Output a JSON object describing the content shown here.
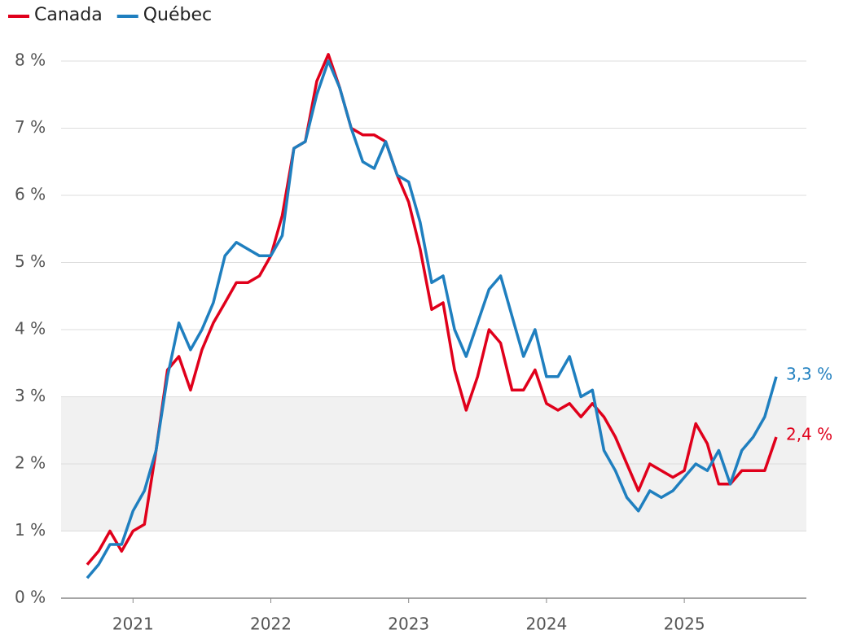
{
  "chart_data": {
    "type": "line",
    "x": [
      2020.667,
      2020.75,
      2020.833,
      2020.917,
      2021.0,
      2021.083,
      2021.167,
      2021.25,
      2021.333,
      2021.417,
      2021.5,
      2021.583,
      2021.667,
      2021.75,
      2021.833,
      2021.917,
      2022.0,
      2022.083,
      2022.167,
      2022.25,
      2022.333,
      2022.417,
      2022.5,
      2022.583,
      2022.667,
      2022.75,
      2022.833,
      2022.917,
      2023.0,
      2023.083,
      2023.167,
      2023.25,
      2023.333,
      2023.417,
      2023.5,
      2023.583,
      2023.667,
      2023.75,
      2023.833,
      2023.917,
      2024.0,
      2024.083,
      2024.167,
      2024.25,
      2024.333,
      2024.417,
      2024.5,
      2024.583,
      2024.667,
      2024.75,
      2024.833,
      2024.917,
      2025.0,
      2025.083,
      2025.167,
      2025.25,
      2025.333,
      2025.417,
      2025.5,
      2025.583,
      2025.667
    ],
    "series": [
      {
        "name": "Canada",
        "color": "#e0001b",
        "values": [
          0.5,
          0.7,
          1.0,
          0.7,
          1.0,
          1.1,
          2.2,
          3.4,
          3.6,
          3.1,
          3.7,
          4.1,
          4.4,
          4.7,
          4.7,
          4.8,
          5.1,
          5.7,
          6.7,
          6.8,
          7.7,
          8.1,
          7.6,
          7.0,
          6.9,
          6.9,
          6.8,
          6.3,
          5.9,
          5.2,
          4.3,
          4.4,
          3.4,
          2.8,
          3.3,
          4.0,
          3.8,
          3.1,
          3.1,
          3.4,
          2.9,
          2.8,
          2.9,
          2.7,
          2.9,
          2.7,
          2.4,
          2.0,
          1.6,
          2.0,
          1.9,
          1.8,
          1.9,
          2.6,
          2.3,
          1.7,
          1.7,
          1.9,
          1.9,
          1.9,
          2.4
        ],
        "value_labels": [
          null,
          null,
          null,
          null,
          null,
          null,
          null,
          null,
          null,
          null,
          null,
          null,
          null,
          null,
          null,
          null,
          null,
          null,
          null,
          null,
          null,
          null,
          null,
          null,
          null,
          null,
          null,
          null,
          null,
          null,
          null,
          null,
          null,
          null,
          null,
          null,
          null,
          null,
          null,
          null,
          null,
          null,
          null,
          null,
          null,
          null,
          null,
          null,
          null,
          null,
          null,
          null,
          null,
          null,
          null,
          null,
          null,
          null,
          null,
          null,
          "2,4 %"
        ]
      },
      {
        "name": "Québec",
        "color": "#1f7fbf",
        "values": [
          0.3,
          0.5,
          0.8,
          0.8,
          1.3,
          1.6,
          2.2,
          3.3,
          4.1,
          3.7,
          4.0,
          4.4,
          5.1,
          5.3,
          5.2,
          5.1,
          5.1,
          5.4,
          6.7,
          6.8,
          7.5,
          8.0,
          7.6,
          7.0,
          6.5,
          6.4,
          6.8,
          6.3,
          6.2,
          5.6,
          4.7,
          4.8,
          4.0,
          3.6,
          4.1,
          4.6,
          4.8,
          4.2,
          3.6,
          4.0,
          3.3,
          3.3,
          3.6,
          3.0,
          3.1,
          2.2,
          1.9,
          1.5,
          1.3,
          1.6,
          1.5,
          1.6,
          1.8,
          2.0,
          1.9,
          2.2,
          1.7,
          2.2,
          2.4,
          2.7,
          3.3
        ],
        "value_labels": [
          null,
          null,
          null,
          null,
          null,
          null,
          null,
          null,
          null,
          null,
          null,
          null,
          null,
          null,
          null,
          null,
          null,
          null,
          null,
          null,
          null,
          null,
          null,
          null,
          null,
          null,
          null,
          null,
          null,
          null,
          null,
          null,
          null,
          null,
          null,
          null,
          null,
          null,
          null,
          null,
          null,
          null,
          null,
          null,
          null,
          null,
          null,
          null,
          null,
          null,
          null,
          null,
          null,
          null,
          null,
          null,
          null,
          null,
          null,
          null,
          "3,3 %"
        ]
      }
    ],
    "target_band": [
      1,
      3
    ],
    "xlim": [
      2020.5,
      2025.9
    ],
    "xticks": [
      2021,
      2022,
      2023,
      2024,
      2025
    ],
    "ylim": [
      0,
      8.2
    ],
    "yticks": [
      {
        "value": 0,
        "label": "0 %"
      },
      {
        "value": 1,
        "label": "1 %"
      },
      {
        "value": 2,
        "label": "2 %"
      },
      {
        "value": 3,
        "label": "3 %"
      },
      {
        "value": 4,
        "label": "4 %"
      },
      {
        "value": 5,
        "label": "5 %"
      },
      {
        "value": 6,
        "label": "6 %"
      },
      {
        "value": 7,
        "label": "7 %"
      },
      {
        "value": 8,
        "label": "8 %"
      }
    ],
    "grid": true,
    "legend": "top-left"
  }
}
